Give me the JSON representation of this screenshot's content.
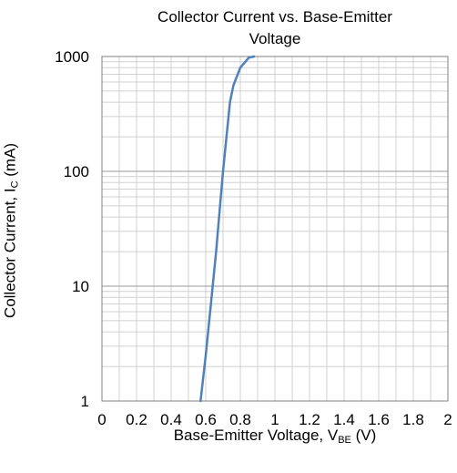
{
  "chart_data": {
    "type": "line",
    "title_lines": [
      "Collector Current vs. Base-Emitter",
      "Voltage"
    ],
    "xlabel": {
      "main": "Base-Emitter Voltage, V",
      "sub": "BE",
      "unit": " (V)"
    },
    "ylabel": {
      "main": "Collector Current, I",
      "sub": "C",
      "unit": " (mA)"
    },
    "x_ticks": [
      "0",
      "0.2",
      "0.4",
      "0.6",
      "0.8",
      "1",
      "1.2",
      "1.4",
      "1.6",
      "1.8",
      "2"
    ],
    "y_ticks": [
      "1",
      "10",
      "100",
      "1000"
    ],
    "xlim": [
      0,
      2
    ],
    "ylim": [
      1,
      1000
    ],
    "y_scale": "log",
    "grid": true,
    "line_color": "#4f81bd",
    "series": [
      {
        "x": [
          0.57,
          0.6,
          0.63,
          0.66,
          0.68,
          0.7,
          0.72,
          0.74,
          0.76,
          0.8,
          0.85,
          0.88
        ],
        "y": [
          1,
          2.5,
          7,
          20,
          45,
          100,
          200,
          400,
          560,
          800,
          980,
          1000
        ]
      }
    ]
  }
}
